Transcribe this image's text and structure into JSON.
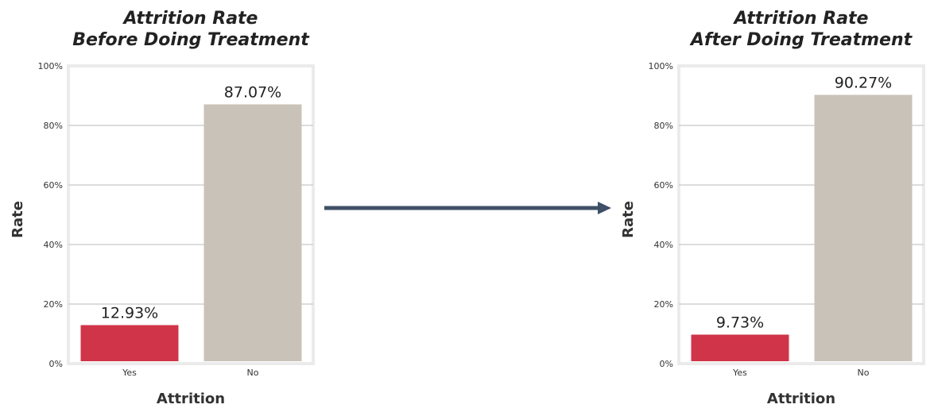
{
  "colors": {
    "yes": "#d03448",
    "no": "#c9c2b8",
    "arrow": "#3f5066",
    "grid": "#d0d0d0",
    "frame": "#ebebeb"
  },
  "chart_data": [
    {
      "type": "bar",
      "title_lines": [
        "Attrition Rate",
        "Before Doing Treatment"
      ],
      "xlabel": "Attrition",
      "ylabel": "Rate",
      "categories": [
        "Yes",
        "No"
      ],
      "values": [
        12.93,
        87.07
      ],
      "data_labels": [
        "12.93%",
        "87.07%"
      ],
      "ylim": [
        0,
        100
      ],
      "yticks": [
        "0%",
        "20%",
        "40%",
        "60%",
        "80%",
        "100%"
      ],
      "grid": true,
      "legend": "none"
    },
    {
      "type": "bar",
      "title_lines": [
        "Attrition Rate",
        "After Doing Treatment"
      ],
      "xlabel": "Attrition",
      "ylabel": "Rate",
      "categories": [
        "Yes",
        "No"
      ],
      "values": [
        9.73,
        90.27
      ],
      "data_labels": [
        "9.73%",
        "90.27%"
      ],
      "ylim": [
        0,
        100
      ],
      "yticks": [
        "0%",
        "20%",
        "40%",
        "60%",
        "80%",
        "100%"
      ],
      "grid": true,
      "legend": "none"
    }
  ]
}
